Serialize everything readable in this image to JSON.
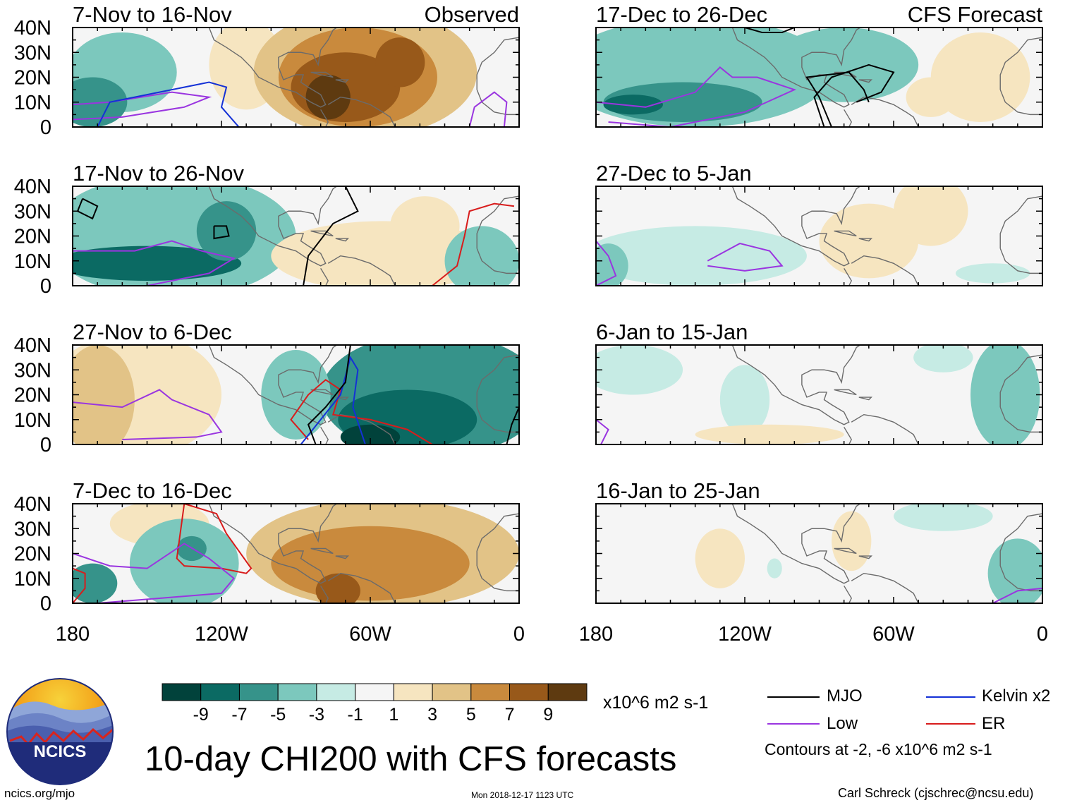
{
  "chart_data": {
    "type": "heatmap",
    "title": "10-day CHI200 with CFS forecasts",
    "variable": "CHI200 (200-hPa velocity potential) anomaly",
    "units": "x10^6 m2 s-1",
    "x_axis": {
      "ticks": [
        "180",
        "120W",
        "60W",
        "0"
      ],
      "range": [
        -180,
        0
      ]
    },
    "y_axis": {
      "ticks": [
        "40N",
        "30N",
        "20N",
        "10N",
        "0"
      ],
      "range": [
        0,
        40
      ]
    },
    "colorbar": {
      "labels": [
        "-9",
        "-7",
        "-5",
        "-3",
        "-1",
        "1",
        "3",
        "5",
        "7",
        "9"
      ],
      "colors": [
        "#01423b",
        "#0b6a63",
        "#36938a",
        "#7cc8bd",
        "#c6ebe4",
        "#f5f5f5",
        "#f6e5c0",
        "#e2c387",
        "#c98a3d",
        "#98591a",
        "#5e3a10"
      ]
    },
    "panel_headers": {
      "observed": "Observed",
      "forecast": "CFS Forecast"
    },
    "panels": [
      {
        "period": "7-Nov to 16-Nov",
        "source": "Observed",
        "pattern": "strong positive centred near 70W-55W; negative over central Pacific"
      },
      {
        "period": "17-Nov to 26-Nov",
        "source": "Observed",
        "pattern": "negative over central/east Pacific; weak positive near 90W-60W"
      },
      {
        "period": "27-Nov to 6-Dec",
        "source": "Observed",
        "pattern": "positive west Pacific; strong negative over Caribbean/Atlantic"
      },
      {
        "period": "7-Dec to 16-Dec",
        "source": "Observed",
        "pattern": "negative central Pacific; strong positive over South America/Atlantic"
      },
      {
        "period": "17-Dec to 26-Dec",
        "source": "CFS Forecast",
        "pattern": "negative over Pacific and Gulf of Mexico"
      },
      {
        "period": "27-Dec to 5-Jan",
        "source": "CFS Forecast",
        "pattern": "weak negative Pacific; weak positive Atlantic"
      },
      {
        "period": "6-Jan to 15-Jan",
        "source": "CFS Forecast",
        "pattern": "weak negative across basin"
      },
      {
        "period": "16-Jan to 25-Jan",
        "source": "CFS Forecast",
        "pattern": "near neutral; weak positive near 130W and 70W"
      }
    ],
    "legend": {
      "entries": [
        {
          "name": "MJO",
          "color": "#000000"
        },
        {
          "name": "Kelvin x2",
          "color": "#1431d6"
        },
        {
          "name": "Low",
          "color": "#9a35e0"
        },
        {
          "name": "ER",
          "color": "#d81c1c"
        }
      ],
      "placement": "bottom-right",
      "contour_note": "Contours at -2, -6 x10^6 m2 s-1"
    }
  },
  "logo": {
    "text": "NCICS"
  },
  "footer": {
    "website": "ncics.org/mjo",
    "timestamp": "Mon 2018-12-17 1123 UTC",
    "author": "Carl Schreck (cjschrec@ncsu.edu)"
  }
}
